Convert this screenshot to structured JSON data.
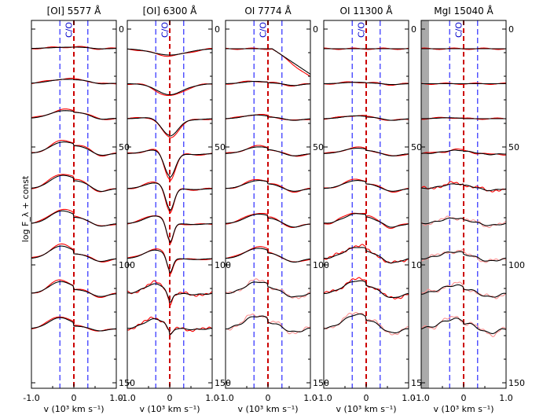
{
  "chart_data": {
    "type": "line",
    "ylabel": "log F_λ + const",
    "xlabel": "v (10³  km s⁻¹)",
    "xlim": [
      -1.0,
      1.0
    ],
    "xticks": [
      "-1.0",
      "0",
      "1.0"
    ],
    "ylim_right": [
      0,
      165
    ],
    "yticks_right": [
      "0",
      "50",
      "100",
      "150"
    ],
    "co_label": "C/O",
    "colors": {
      "model": "#000000",
      "obs": "#ff0000",
      "obs_faint": "#ff9090",
      "center": "#cc0000",
      "guide": "#0000ff",
      "shade": "#aaaaaa"
    },
    "panels": [
      {
        "title": "[OI] 5577 Å",
        "curves": [
          {
            "d": 2,
            "w": 0.55,
            "l": 0.0,
            "a": 0.1,
            "h": 0.0,
            "t": 0.0
          },
          {
            "d": 5,
            "w": 0.5,
            "l": 0.1,
            "a": 0.2,
            "h": 0.0,
            "t": 0.0
          },
          {
            "d": 8,
            "w": 0.45,
            "l": 0.3,
            "a": 0.3,
            "h": 0.0,
            "t": 0.0
          },
          {
            "d": 10,
            "w": 0.4,
            "l": 0.6,
            "a": 0.4,
            "h": 0.0,
            "t": 0.0
          },
          {
            "d": 10,
            "w": 0.38,
            "l": 0.8,
            "a": 0.5,
            "h": 0.0,
            "t": 0.0
          },
          {
            "d": 8,
            "w": 0.35,
            "l": 0.9,
            "a": 0.4,
            "h": 0.0,
            "t": 0.0
          },
          {
            "d": 6,
            "w": 0.35,
            "l": 1.0,
            "a": 0.4,
            "h": 0.0,
            "t": 0.0
          },
          {
            "d": 5,
            "w": 0.35,
            "l": 1.0,
            "a": 0.4,
            "h": 0.0,
            "t": 0.0
          },
          {
            "d": 3,
            "w": 0.35,
            "l": 1.0,
            "a": 0.3,
            "h": 0.0,
            "t": 0.0
          }
        ]
      },
      {
        "title": "[OI] 6300 Å",
        "curves": [
          {
            "d": -8,
            "w": 0.4,
            "l": 0.0,
            "a": 0.0,
            "h": 0.0,
            "t": 0.0
          },
          {
            "d": -14,
            "w": 0.3,
            "l": 0.0,
            "a": 0.1,
            "h": 0.0,
            "t": 0.0
          },
          {
            "d": -22,
            "w": 0.2,
            "l": 0.2,
            "a": 0.1,
            "h": 0.0,
            "t": 0.0
          },
          {
            "d": -30,
            "w": 0.13,
            "l": 0.4,
            "a": 0.1,
            "h": 0.0,
            "t": 0.0
          },
          {
            "d": -28,
            "w": 0.1,
            "l": 0.6,
            "a": 0.1,
            "h": 0.0,
            "t": 0.0
          },
          {
            "d": -24,
            "w": 0.08,
            "l": 0.8,
            "a": 0.1,
            "h": 0.0,
            "t": 0.0
          },
          {
            "d": -18,
            "w": 0.07,
            "l": 0.9,
            "a": 0.1,
            "h": 0.0,
            "t": 0.0
          },
          {
            "d": -12,
            "w": 0.06,
            "l": 1.0,
            "a": 0.1,
            "h": 0.3,
            "t": 0.0
          },
          {
            "d": -8,
            "w": 0.06,
            "l": 1.0,
            "a": 0.1,
            "h": 0.3,
            "t": 0.0
          }
        ]
      },
      {
        "title": "OI 7774 Å",
        "curves": [
          {
            "d": 0,
            "w": 0.4,
            "l": 0.0,
            "a": 0.0,
            "h": 0.0,
            "t": 3.0
          },
          {
            "d": 1,
            "w": 0.3,
            "l": 0.2,
            "a": 0.2,
            "h": 0.0,
            "t": 0.0
          },
          {
            "d": 2,
            "w": 0.3,
            "l": 0.3,
            "a": 0.2,
            "h": 0.0,
            "t": 0.0
          },
          {
            "d": 5,
            "w": 0.25,
            "l": 0.5,
            "a": 0.25,
            "h": 0.0,
            "t": 0.0
          },
          {
            "d": 6,
            "w": 0.25,
            "l": 0.6,
            "a": 0.3,
            "h": 0.0,
            "t": 0.0
          },
          {
            "d": 7,
            "w": 0.25,
            "l": 0.7,
            "a": 0.4,
            "h": 0.0,
            "t": 0.0
          },
          {
            "d": 7,
            "w": 0.25,
            "l": 0.8,
            "a": 0.4,
            "h": 0.0,
            "t": 0.0
          },
          {
            "d": 8,
            "w": 0.25,
            "l": 0.9,
            "a": 0.4,
            "h": 0.4,
            "t": 0.0
          },
          {
            "d": 8,
            "w": 0.25,
            "l": 1.0,
            "a": 0.4,
            "h": 0.6,
            "t": 0.0
          }
        ]
      },
      {
        "title": "OI 11300 Å",
        "curves": [
          {
            "d": 0,
            "w": 0.4,
            "l": 0.0,
            "a": 0.0,
            "h": 0.0,
            "t": 0.0
          },
          {
            "d": 1,
            "w": 0.3,
            "l": 0.1,
            "a": 0.1,
            "h": 0.0,
            "t": 0.0
          },
          {
            "d": 2,
            "w": 0.3,
            "l": 0.2,
            "a": 0.2,
            "h": 0.0,
            "t": 0.0
          },
          {
            "d": 4,
            "w": 0.25,
            "l": 0.4,
            "a": 0.25,
            "h": 0.0,
            "t": 0.0
          },
          {
            "d": 6,
            "w": 0.25,
            "l": 0.6,
            "a": 0.3,
            "h": 0.0,
            "t": 0.0
          },
          {
            "d": 8,
            "w": 0.25,
            "l": 0.7,
            "a": 0.4,
            "h": 0.2,
            "t": 0.0
          },
          {
            "d": 9,
            "w": 0.25,
            "l": 0.8,
            "a": 0.5,
            "h": 0.3,
            "t": 0.0
          },
          {
            "d": 10,
            "w": 0.25,
            "l": 0.9,
            "a": 0.5,
            "h": 0.3,
            "t": 0.0
          },
          {
            "d": 11,
            "w": 0.25,
            "l": 1.0,
            "a": 0.5,
            "h": 0.4,
            "t": 0.0
          }
        ]
      },
      {
        "title": "MgI 15040 Å",
        "curves": [
          {
            "d": 0,
            "w": 0.4,
            "l": 0.0,
            "a": 0.0,
            "h": 0.0,
            "t": 0.0
          },
          {
            "d": 0,
            "w": 0.3,
            "l": 0.0,
            "a": 0.0,
            "h": 0.0,
            "t": 0.0
          },
          {
            "d": 0,
            "w": 0.3,
            "l": 0.1,
            "a": 0.0,
            "h": 0.0,
            "t": 0.0
          },
          {
            "d": 3,
            "w": 0.25,
            "l": 0.2,
            "a": 0.1,
            "h": 0.2,
            "t": 0.0
          },
          {
            "d": 4,
            "w": 0.25,
            "l": 0.3,
            "a": 0.2,
            "h": 0.3,
            "t": 0.0
          },
          {
            "d": 4,
            "w": 0.25,
            "l": 0.4,
            "a": 0.2,
            "h": 0.4,
            "t": 0.0
          },
          {
            "d": 5,
            "w": 0.25,
            "l": 0.5,
            "a": 0.3,
            "h": 0.5,
            "t": 0.0
          },
          {
            "d": 6,
            "w": 0.25,
            "l": 0.6,
            "a": 0.4,
            "h": 0.6,
            "t": 0.0
          },
          {
            "d": 7,
            "w": 0.25,
            "l": 0.7,
            "a": 0.5,
            "h": 0.7,
            "t": 0.0
          }
        ]
      }
    ]
  }
}
